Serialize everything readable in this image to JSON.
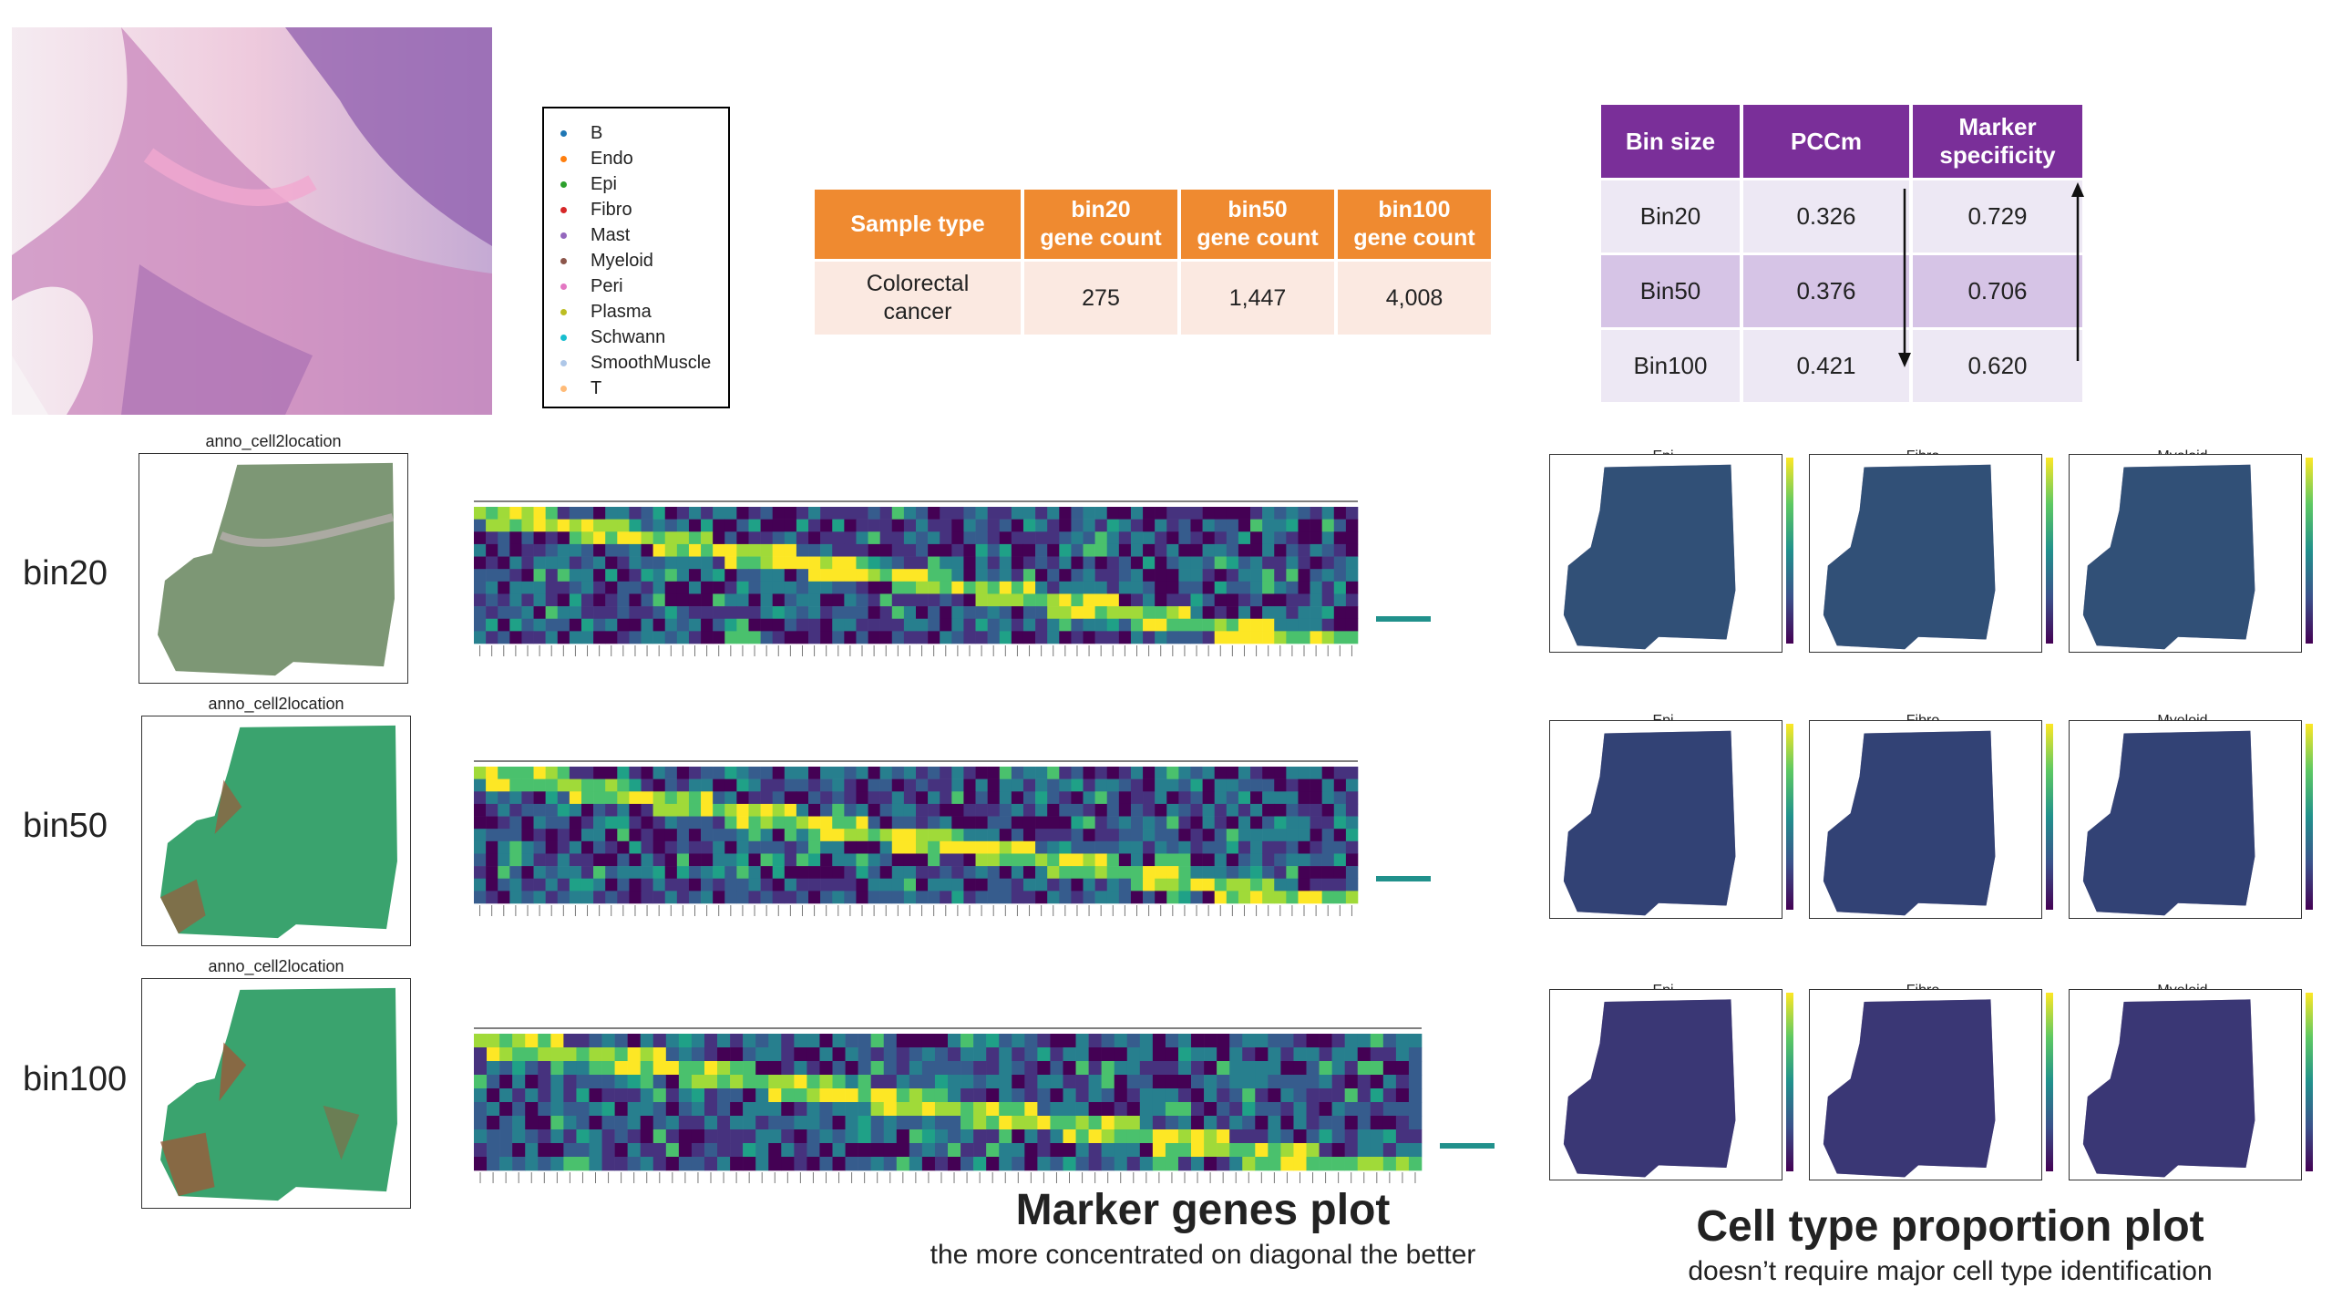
{
  "legend": {
    "items": [
      {
        "label": "B",
        "color": "#1f77b4"
      },
      {
        "label": "Endo",
        "color": "#ff7f0e"
      },
      {
        "label": "Epi",
        "color": "#2ca02c"
      },
      {
        "label": "Fibro",
        "color": "#d62728"
      },
      {
        "label": "Mast",
        "color": "#9467bd"
      },
      {
        "label": "Myeloid",
        "color": "#8c564b"
      },
      {
        "label": "Peri",
        "color": "#e377c2"
      },
      {
        "label": "Plasma",
        "color": "#bcbd22"
      },
      {
        "label": "Schwann",
        "color": "#17becf"
      },
      {
        "label": "SmoothMuscle",
        "color": "#aec7e8"
      },
      {
        "label": "T",
        "color": "#ffbb78"
      }
    ]
  },
  "sample_table": {
    "headers": [
      "Sample type",
      "bin20\ngene count",
      "bin50\ngene count",
      "bin100\ngene count"
    ],
    "row": [
      "Colorectal\ncancer",
      "275",
      "1,447",
      "4,008"
    ]
  },
  "bin_table": {
    "headers": [
      "Bin size",
      "PCCm",
      "Marker\nspecificity"
    ],
    "rows": [
      [
        "Bin20",
        "0.326",
        "0.729"
      ],
      [
        "Bin50",
        "0.376",
        "0.706"
      ],
      [
        "Bin100",
        "0.421",
        "0.620"
      ]
    ]
  },
  "rows": [
    {
      "label": "bin20",
      "spatial_title": "anno_cell2location"
    },
    {
      "label": "bin50",
      "spatial_title": "anno_cell2location"
    },
    {
      "label": "bin100",
      "spatial_title": "anno_cell2location"
    }
  ],
  "proportion_titles": [
    "Epi",
    "Fibro",
    "Myeloid"
  ],
  "captions": {
    "marker_title": "Marker genes plot",
    "marker_sub": "the more concentrated on diagonal the better",
    "prop_title": "Cell type proportion plot",
    "prop_sub": "doesn’t require major cell type identification"
  }
}
